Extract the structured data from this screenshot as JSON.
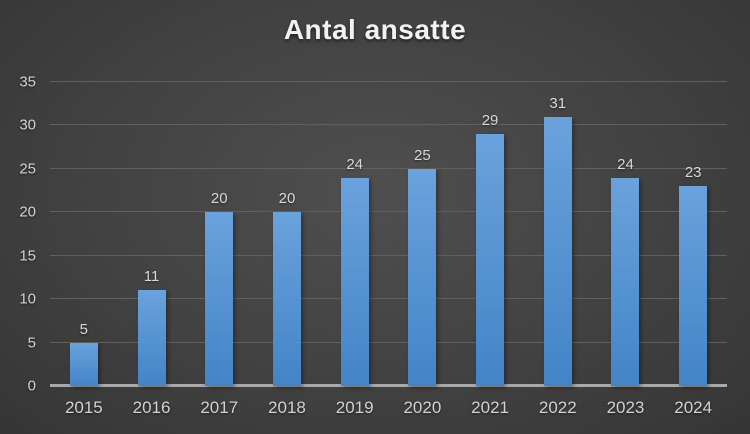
{
  "chart_data": {
    "type": "bar",
    "title": "Antal ansatte",
    "categories": [
      "2015",
      "2016",
      "2017",
      "2018",
      "2019",
      "2020",
      "2021",
      "2022",
      "2023",
      "2024"
    ],
    "values": [
      5,
      11,
      20,
      20,
      24,
      25,
      29,
      31,
      24,
      23
    ],
    "xlabel": "",
    "ylabel": "",
    "ylim": [
      0,
      35
    ],
    "yticks": [
      0,
      5,
      10,
      15,
      20,
      25,
      30,
      35
    ],
    "grid": true,
    "legend": "none",
    "data_labels": true
  },
  "colors": {
    "bar_gradient_top": "#6aa2dc",
    "bar_gradient_bottom": "#4384c7",
    "gridline": "#606060",
    "axis_line": "#a9a9a9",
    "tick_label": "#d2d2d2",
    "data_label": "#d9d9d9",
    "title": "#f2f2f2",
    "background_center": "#4f4f4f",
    "background_edge": "#232323"
  }
}
